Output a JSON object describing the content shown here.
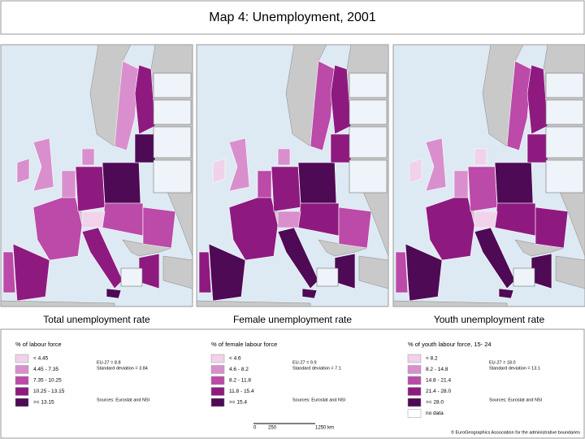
{
  "title": "Map 4: Unemployment, 2001",
  "maps": [
    {
      "title": "Total unemployment rate",
      "legend": {
        "heading": "% of labour force",
        "classes": [
          {
            "label": "< 4.45",
            "color": "#f0d2ea"
          },
          {
            "label": "4.45 - 7.35",
            "color": "#d98fcd"
          },
          {
            "label": "7.35 - 10.25",
            "color": "#bb4aa8"
          },
          {
            "label": "10.25 - 13.15",
            "color": "#8e1a80"
          },
          {
            "label": ">= 13.15",
            "color": "#4e0a55"
          }
        ],
        "stats": [
          "EU-27 = 8.8",
          "Standard deviation = 3.84"
        ],
        "source": "Sources: Eurostat and NSI"
      }
    },
    {
      "title": "Female unemployment rate",
      "legend": {
        "heading": "% of female labour force",
        "classes": [
          {
            "label": "< 4.6",
            "color": "#f0d2ea"
          },
          {
            "label": "4.6 - 8.2",
            "color": "#d98fcd"
          },
          {
            "label": "8.2 - 11.8",
            "color": "#bb4aa8"
          },
          {
            "label": "11.8 - 15.4",
            "color": "#8e1a80"
          },
          {
            "label": ">= 15.4",
            "color": "#4e0a55"
          }
        ],
        "stats": [
          "EU-27 = 9.9",
          "Standard deviation = 7.1"
        ],
        "source": "Sources: Eurostat and NSI"
      }
    },
    {
      "title": "Youth unemployment rate",
      "legend": {
        "heading": "% of youth labour force, 15- 24",
        "classes": [
          {
            "label": "< 8.2",
            "color": "#f0d2ea"
          },
          {
            "label": "8.2 - 14.8",
            "color": "#d98fcd"
          },
          {
            "label": "14.8 - 21.4",
            "color": "#bb4aa8"
          },
          {
            "label": "21.4 - 28.0",
            "color": "#8e1a80"
          },
          {
            "label": ">= 28.0",
            "color": "#4e0a55"
          },
          {
            "label": "no data",
            "color": "#ffffff"
          }
        ],
        "stats": [
          "EU-27 = 18.0",
          "Standard deviation = 13.1"
        ],
        "source": "Sources: Eurostat and NSI"
      }
    }
  ],
  "scale": {
    "labels": [
      "0",
      "250",
      "1250 km"
    ]
  },
  "credit": "© EuroGeographics Association for the administrative boundaries"
}
